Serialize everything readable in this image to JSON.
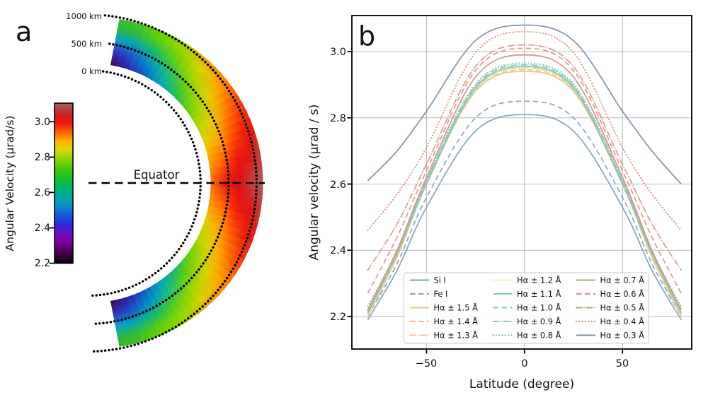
{
  "panel_labels": {
    "a": "a",
    "b": "b"
  },
  "chart_data": [
    {
      "type": "heatmap",
      "panel": "a",
      "projection": "polar-half-annulus",
      "equator_label": "Equator",
      "altitude_labels": [
        "0 km",
        "500 km",
        "1000 km"
      ],
      "altitude_rings_km": [
        0,
        500,
        1000
      ],
      "colorbar": {
        "label": "Angular Velocity (μrad/s)",
        "tick_labels": [
          "3.0",
          "2.8",
          "2.6",
          "2.4",
          "2.2"
        ],
        "tick_values": [
          3.0,
          2.8,
          2.6,
          2.4,
          2.2
        ],
        "vmin": 2.2,
        "vmax": 3.105,
        "colormap_stops": [
          [
            2.2,
            "#0a0010"
          ],
          [
            2.26,
            "#45004d"
          ],
          [
            2.32,
            "#8500a6"
          ],
          [
            2.37,
            "#6a10c0"
          ],
          [
            2.42,
            "#2a28dc"
          ],
          [
            2.47,
            "#1157e0"
          ],
          [
            2.52,
            "#0b8cc4"
          ],
          [
            2.57,
            "#00a8a8"
          ],
          [
            2.62,
            "#00b36e"
          ],
          [
            2.67,
            "#0fbe30"
          ],
          [
            2.73,
            "#3fcb08"
          ],
          [
            2.79,
            "#8cd600"
          ],
          [
            2.84,
            "#d8d800"
          ],
          [
            2.89,
            "#ffb400"
          ],
          [
            2.94,
            "#ff6000"
          ],
          [
            2.99,
            "#ef1c10"
          ],
          [
            3.03,
            "#d31818"
          ],
          [
            3.07,
            "#b84040"
          ],
          [
            3.105,
            "#a86060"
          ]
        ]
      },
      "radial_color_profile": [
        {
          "lat": 0,
          "colors": [
            "#ff7000",
            "#e61410",
            "#d81212",
            "#c04646",
            "#ab5e5e"
          ]
        },
        {
          "lat": 9,
          "colors": [
            "#ffa000",
            "#ff5800",
            "#ee1410",
            "#dd1610",
            "#c43e3e"
          ]
        },
        {
          "lat": 18,
          "colors": [
            "#e6d200",
            "#ffa200",
            "#ff5200",
            "#ec1c0e",
            "#dc1c10"
          ]
        },
        {
          "lat": 27,
          "colors": [
            "#a8d800",
            "#e9d000",
            "#ff9600",
            "#ff5200",
            "#f43216"
          ]
        },
        {
          "lat": 36,
          "colors": [
            "#5ccd10",
            "#aad800",
            "#e9cc00",
            "#ffa000",
            "#ff7a00"
          ]
        },
        {
          "lat": 45,
          "colors": [
            "#18bc64",
            "#66d00a",
            "#aad800",
            "#e2d000",
            "#f0a400"
          ]
        },
        {
          "lat": 54,
          "colors": [
            "#00a2c6",
            "#18c07e",
            "#58cd15",
            "#90d800",
            "#aad600"
          ]
        },
        {
          "lat": 63,
          "colors": [
            "#0c58c8",
            "#0096cc",
            "#14bc6a",
            "#60cf0e",
            "#72d200"
          ]
        },
        {
          "lat": 72,
          "colors": [
            "#3318a0",
            "#1e50cc",
            "#00a4bc",
            "#32bc36",
            "#46c51e"
          ]
        },
        {
          "lat": 79,
          "colors": [
            "#380840",
            "#3a2cc4",
            "#0a9ed2",
            "#28b93e",
            "#34bc22"
          ]
        }
      ]
    },
    {
      "type": "line",
      "panel": "b",
      "xlabel": "Latitude (degree)",
      "ylabel": "Angular velocity (μrad / s)",
      "xtick_labels": [
        "−50",
        "0",
        "50"
      ],
      "xtick_values": [
        -50,
        0,
        50
      ],
      "ytick_labels": [
        "3.0",
        "2.8",
        "2.6",
        "2.4",
        "2.2"
      ],
      "ytick_values": [
        3.0,
        2.8,
        2.6,
        2.4,
        2.2
      ],
      "xlim": [
        -88,
        85
      ],
      "ylim": [
        2.1,
        3.11
      ],
      "grid": true,
      "legend": {
        "rows": 5,
        "columns": 3,
        "location": "lower center"
      },
      "x": [
        -80,
        -65,
        -50,
        -25,
        0,
        25,
        50,
        65,
        80
      ],
      "series": [
        {
          "name": "Si I",
          "color": "#7fa3ba",
          "style": "solid",
          "values": [
            2.19,
            2.34,
            2.53,
            2.76,
            2.81,
            2.76,
            2.53,
            2.34,
            2.19
          ]
        },
        {
          "name": "Fe I",
          "color": "#7fa3ba",
          "style": "dashed",
          "values": [
            2.2,
            2.36,
            2.56,
            2.8,
            2.85,
            2.8,
            2.56,
            2.36,
            2.2
          ]
        },
        {
          "name": "Hα ± 1.5 Å",
          "color": "#edc583",
          "style": "solid",
          "values": [
            2.2,
            2.38,
            2.6,
            2.88,
            2.94,
            2.88,
            2.6,
            2.38,
            2.2
          ]
        },
        {
          "name": "Hα ± 1.4 Å",
          "color": "#edc583",
          "style": "dashed",
          "values": [
            2.21,
            2.38,
            2.6,
            2.88,
            2.945,
            2.88,
            2.6,
            2.38,
            2.21
          ]
        },
        {
          "name": "Hα ± 1.3 Å",
          "color": "#edc583",
          "style": "dashdot",
          "values": [
            2.21,
            2.39,
            2.6,
            2.885,
            2.95,
            2.885,
            2.6,
            2.39,
            2.21
          ]
        },
        {
          "name": "Hα ± 1.2 Å",
          "color": "#e8e2ae",
          "style": "dotted",
          "values": [
            2.22,
            2.39,
            2.605,
            2.89,
            2.95,
            2.89,
            2.605,
            2.39,
            2.22
          ]
        },
        {
          "name": "Hα ± 1.1 Å",
          "color": "#82c7b9",
          "style": "solid",
          "values": [
            2.21,
            2.39,
            2.6,
            2.89,
            2.955,
            2.89,
            2.6,
            2.39,
            2.21
          ]
        },
        {
          "name": "Hα ± 1.0 Å",
          "color": "#82c7b9",
          "style": "dashed",
          "values": [
            2.215,
            2.39,
            2.605,
            2.892,
            2.955,
            2.892,
            2.605,
            2.39,
            2.215
          ]
        },
        {
          "name": "Hα ± 0.9 Å",
          "color": "#82c7b9",
          "style": "dashdot",
          "values": [
            2.22,
            2.4,
            2.61,
            2.897,
            2.96,
            2.897,
            2.61,
            2.4,
            2.22
          ]
        },
        {
          "name": "Hα ± 0.8 Å",
          "color": "#82c7b9",
          "style": "dotted",
          "values": [
            2.23,
            2.4,
            2.615,
            2.902,
            2.965,
            2.902,
            2.615,
            2.4,
            2.23
          ]
        },
        {
          "name": "Hα ± 0.7 Å",
          "color": "#dd8e86",
          "style": "solid",
          "values": [
            2.22,
            2.4,
            2.62,
            2.923,
            2.99,
            2.923,
            2.62,
            2.4,
            2.22
          ]
        },
        {
          "name": "Hα ± 0.6 Å",
          "color": "#dd8e86",
          "style": "dashed",
          "values": [
            2.27,
            2.44,
            2.64,
            2.943,
            3.01,
            2.943,
            2.64,
            2.44,
            2.27
          ]
        },
        {
          "name": "Hα ± 0.5 Å",
          "color": "#dd8e86",
          "style": "dashdot",
          "values": [
            2.34,
            2.48,
            2.66,
            2.955,
            3.02,
            2.955,
            2.66,
            2.48,
            2.34
          ]
        },
        {
          "name": "Hα ± 0.4 Å",
          "color": "#dd8e86",
          "style": "dotted",
          "values": [
            2.46,
            2.57,
            2.71,
            2.997,
            3.06,
            2.997,
            2.71,
            2.57,
            2.46
          ]
        },
        {
          "name": "Hα ± 0.3 Å",
          "color": "#8289ad",
          "style": "solid",
          "values": [
            2.61,
            2.7,
            2.82,
            3.033,
            3.08,
            3.033,
            2.82,
            2.7,
            2.6
          ]
        }
      ]
    }
  ]
}
